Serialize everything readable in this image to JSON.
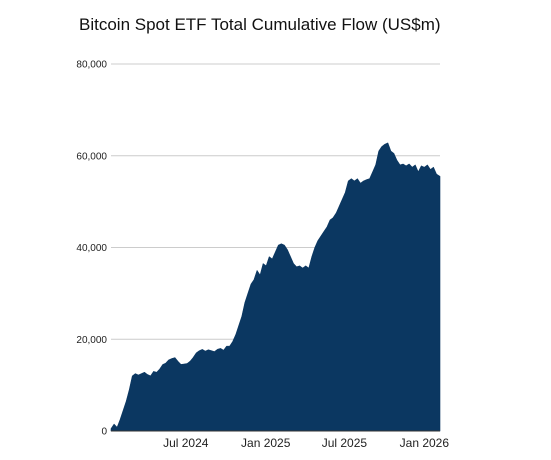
{
  "chart_data": {
    "type": "area",
    "title": "Bitcoin Spot ETF Total Cumulative Flow (US$m)",
    "xlabel": "",
    "ylabel": "",
    "ylim": [
      0,
      80000
    ],
    "y_ticks": [
      0,
      20000,
      40000,
      60000,
      80000
    ],
    "y_tick_labels": [
      "0",
      "20,000",
      "40,000",
      "60,000",
      "80,000"
    ],
    "x_range": [
      "2024-01-11",
      "2026-02-06"
    ],
    "x_ticks": [
      "2024-07-01",
      "2025-01-01",
      "2025-07-01",
      "2026-01-01"
    ],
    "x_tick_labels": [
      "Jul 2024",
      "Jan 2025",
      "Jul 2025",
      "Jan 2026"
    ],
    "grid": "horizontal",
    "legend": "none",
    "colors": {
      "fill": "#0b3761",
      "grid": "#cccccc",
      "baseline": "#333333"
    },
    "series": [
      {
        "x": [
          "2024-01-11",
          "2024-01-18",
          "2024-01-25",
          "2024-02-01",
          "2024-02-08",
          "2024-02-15",
          "2024-02-22",
          "2024-02-29",
          "2024-03-07",
          "2024-03-14",
          "2024-03-21",
          "2024-03-28",
          "2024-04-04",
          "2024-04-11",
          "2024-04-18",
          "2024-04-25",
          "2024-05-02",
          "2024-05-09",
          "2024-05-16",
          "2024-05-23",
          "2024-05-30",
          "2024-06-06",
          "2024-06-13",
          "2024-06-20",
          "2024-06-27",
          "2024-07-04",
          "2024-07-11",
          "2024-07-18",
          "2024-07-25",
          "2024-08-01",
          "2024-08-08",
          "2024-08-15",
          "2024-08-22",
          "2024-08-29",
          "2024-09-05",
          "2024-09-12",
          "2024-09-19",
          "2024-09-26",
          "2024-10-03",
          "2024-10-10",
          "2024-10-17",
          "2024-10-24",
          "2024-10-31",
          "2024-11-07",
          "2024-11-14",
          "2024-11-21",
          "2024-11-28",
          "2024-12-05",
          "2024-12-12",
          "2024-12-19",
          "2024-12-26",
          "2025-01-02",
          "2025-01-09",
          "2025-01-16",
          "2025-01-23",
          "2025-01-30",
          "2025-02-06",
          "2025-02-13",
          "2025-02-20",
          "2025-02-27",
          "2025-03-06",
          "2025-03-13",
          "2025-03-20",
          "2025-03-27",
          "2025-04-03",
          "2025-04-10",
          "2025-04-17",
          "2025-04-24",
          "2025-05-01",
          "2025-05-08",
          "2025-05-15",
          "2025-05-22",
          "2025-05-29",
          "2025-06-05",
          "2025-06-12",
          "2025-06-19",
          "2025-06-26",
          "2025-07-03",
          "2025-07-10",
          "2025-07-17",
          "2025-07-24",
          "2025-07-31",
          "2025-08-07",
          "2025-08-14",
          "2025-08-21",
          "2025-08-28",
          "2025-09-04",
          "2025-09-11",
          "2025-09-18",
          "2025-09-25",
          "2025-10-02",
          "2025-10-09",
          "2025-10-16",
          "2025-10-23",
          "2025-10-30",
          "2025-11-06",
          "2025-11-13",
          "2025-11-20",
          "2025-11-27",
          "2025-12-04",
          "2025-12-11",
          "2025-12-18",
          "2025-12-25",
          "2026-01-01",
          "2026-01-08",
          "2026-01-15",
          "2026-01-22",
          "2026-01-29",
          "2026-02-06"
        ],
        "values": [
          500,
          1500,
          800,
          2500,
          4500,
          6500,
          9000,
          12000,
          12500,
          12200,
          12500,
          12800,
          12300,
          12000,
          13000,
          12800,
          13500,
          14500,
          14800,
          15500,
          15800,
          16000,
          15200,
          14500,
          14600,
          14700,
          15200,
          16000,
          17000,
          17500,
          17800,
          17400,
          17700,
          17500,
          17300,
          17800,
          18000,
          17600,
          18500,
          18500,
          19500,
          21000,
          23000,
          25000,
          28000,
          30000,
          32000,
          33000,
          35000,
          34000,
          36500,
          36000,
          38000,
          37500,
          39000,
          40500,
          40800,
          40500,
          39500,
          38000,
          36500,
          35800,
          36000,
          35500,
          36000,
          35500,
          38000,
          40000,
          41500,
          42500,
          43500,
          44500,
          46000,
          46500,
          47500,
          49000,
          50500,
          52000,
          54500,
          55000,
          54500,
          55000,
          54000,
          54500,
          54800,
          55000,
          56500,
          58000,
          61000,
          62000,
          62500,
          62800,
          61000,
          60500,
          59000,
          58000,
          58200,
          57800,
          58200,
          57500,
          58000,
          56500,
          57800,
          57500,
          58000,
          57000,
          57500,
          56000,
          55500
        ]
      }
    ]
  }
}
